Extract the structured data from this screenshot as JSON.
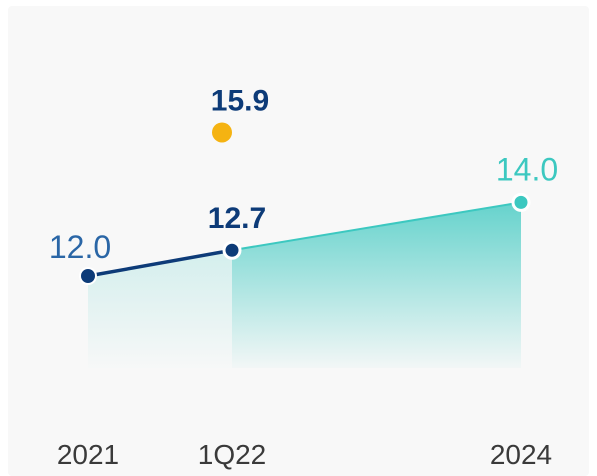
{
  "chart_data": {
    "type": "line",
    "categories": [
      "2021",
      "1Q22",
      "2024"
    ],
    "series": [
      {
        "values": [
          12.0,
          12.7,
          null
        ],
        "color": "#0d3b78",
        "labels": [
          "12.0",
          "12.7",
          ""
        ]
      },
      {
        "values": [
          null,
          12.7,
          14.0
        ],
        "color": "#3cc8c0",
        "labels": [
          "",
          "",
          "14.0"
        ],
        "fill": "area"
      },
      {
        "values": [
          null,
          15.9,
          null
        ],
        "color": "#f5b312",
        "labels": [
          "",
          "15.9",
          ""
        ],
        "marker_only": true
      }
    ],
    "title": "",
    "xlabel": "",
    "ylabel": "",
    "ylim": [
      9.5,
      17
    ],
    "grid": false,
    "legend": "none"
  },
  "colors": {
    "label_2021": "#2a66a6",
    "label_1q22": "#0d3b78",
    "label_15_9": "#0d3b78",
    "label_2024": "#3cc8c0"
  }
}
